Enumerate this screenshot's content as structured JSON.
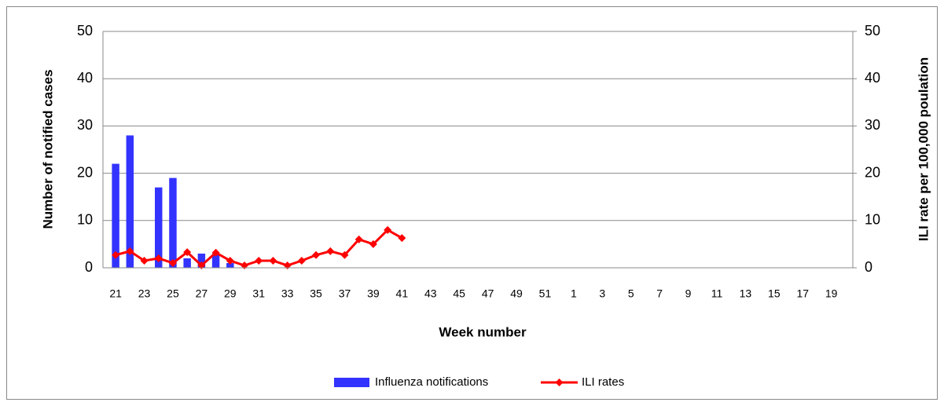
{
  "chart_data": {
    "type": "bar-line",
    "x_label": "Week number",
    "y_label": "Number of notified cases",
    "y2_label": "ILI rate per 100,000 poulation",
    "categories": [
      21,
      null,
      23,
      null,
      25,
      null,
      27,
      null,
      29,
      null,
      31,
      null,
      33,
      null,
      35,
      null,
      37,
      null,
      39,
      null,
      41,
      null,
      43,
      null,
      45,
      null,
      47,
      null,
      49,
      null,
      51,
      null,
      1,
      null,
      3,
      null,
      5,
      null,
      7,
      null,
      9,
      null,
      11,
      null,
      13,
      null,
      15,
      null,
      17,
      null,
      19,
      null
    ],
    "series": [
      {
        "name": "Influenza notifications",
        "type": "bar",
        "color": "#3333ff",
        "values": [
          22,
          28,
          0,
          17,
          19,
          2,
          3,
          3,
          1,
          0,
          0,
          0,
          0,
          0,
          0,
          0,
          0,
          0,
          0,
          0,
          0,
          null,
          null,
          null,
          null,
          null,
          null,
          null,
          null,
          null,
          null,
          null,
          null,
          null,
          null,
          null,
          null,
          null,
          null,
          null,
          null,
          null,
          null,
          null,
          null,
          null,
          null,
          null,
          null,
          null,
          null,
          null
        ]
      },
      {
        "name": "ILI rates",
        "type": "line",
        "axis": "y2",
        "color": "#ff0000",
        "values": [
          2.7,
          3.5,
          1.5,
          2,
          1,
          3.3,
          0.5,
          3.2,
          1.5,
          0.5,
          1.5,
          1.5,
          0.5,
          1.5,
          2.7,
          3.5,
          2.7,
          6,
          5,
          8,
          6.3,
          null,
          null,
          null,
          null,
          null,
          null,
          null,
          null,
          null,
          null,
          null,
          null,
          null,
          null,
          null,
          null,
          null,
          null,
          null,
          null,
          null,
          null,
          null,
          null,
          null,
          null,
          null,
          null,
          null,
          null,
          null
        ]
      }
    ],
    "ylim": [
      0,
      50
    ],
    "yticks": [
      0,
      10,
      20,
      30,
      40,
      50
    ],
    "y2lim": [
      0,
      50
    ],
    "y2ticks": [
      0,
      10,
      20,
      30,
      40,
      50
    ],
    "grid": true,
    "legend": "bottom"
  }
}
